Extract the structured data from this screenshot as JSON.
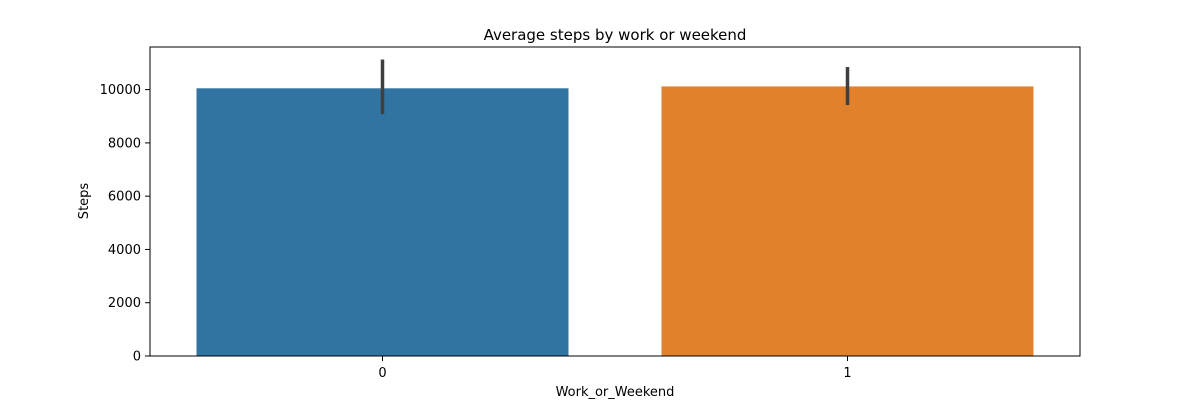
{
  "chart_data": {
    "type": "bar",
    "title": "Average steps by work or weekend",
    "xlabel": "Work_or_Weekend",
    "ylabel": "Steps",
    "categories": [
      "0",
      "1"
    ],
    "values": [
      10050,
      10120
    ],
    "error_bars": [
      {
        "low": 9080,
        "high": 11130
      },
      {
        "low": 9420,
        "high": 10850
      }
    ],
    "colors": [
      "#3274a1",
      "#e1812c"
    ],
    "error_color": "#3f3f3f",
    "ylim": [
      0,
      11600
    ],
    "yticks": [
      0,
      2000,
      4000,
      6000,
      8000,
      10000
    ],
    "ytick_labels": [
      "0",
      "2000",
      "4000",
      "6000",
      "8000",
      "10000"
    ],
    "grid": false,
    "legend": "none"
  }
}
